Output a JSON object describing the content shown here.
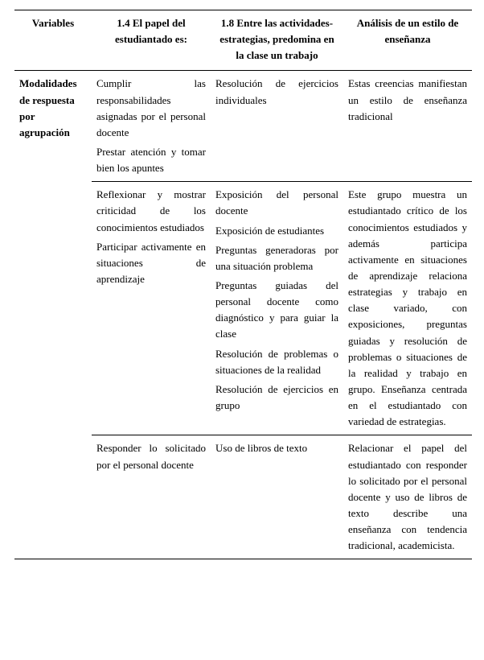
{
  "headers": {
    "c0": "Variables",
    "c1": "1.4 El papel del estudiantado es:",
    "c2": "1.8 Entre las actividades-estrategias, predomina en la clase un trabajo",
    "c3": "Análisis de un estilo de enseñanza"
  },
  "rowlabel": "Modalidades de respuesta por agrupación",
  "rows": [
    {
      "c1": [
        "Cumplir las responsabilidades asignadas por el personal docente",
        "Prestar atención y tomar bien los apuntes"
      ],
      "c2": [
        "Resolución de ejercicios individuales"
      ],
      "c3": [
        "Estas creencias manifiestan un estilo de enseñanza tradicional"
      ]
    },
    {
      "c1": [
        "Reflexionar y mostrar criticidad de los conocimientos estudiados",
        "Participar activamente en situaciones de aprendizaje"
      ],
      "c2": [
        "Exposición del personal docente",
        "Exposición de estudiantes",
        "Preguntas generadoras por una situación problema",
        "Preguntas guiadas del personal docente como diagnóstico y para guiar la clase",
        "Resolución de problemas o situaciones de la realidad",
        "Resolución de ejercicios en grupo"
      ],
      "c3": [
        "Este grupo muestra un estudiantado crítico de los conocimientos estudiados y además participa activamente en situaciones de aprendizaje relaciona estrategias y trabajo en clase variado, con exposiciones, preguntas guiadas y resolución de problemas o situaciones de la realidad y trabajo en grupo. Enseñanza centrada en el estudiantado con variedad de estrategias."
      ]
    },
    {
      "c1": [
        "Responder lo solicitado por el personal docente"
      ],
      "c2": [
        "Uso de libros de texto"
      ],
      "c3": [
        "Relacionar el papel del estudiantado con responder lo solicitado por el personal docente y uso de libros de texto describe una enseñanza con tendencia tradicional, academicista."
      ]
    }
  ]
}
